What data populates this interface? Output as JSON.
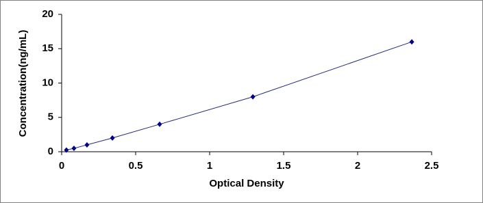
{
  "chart_data": {
    "type": "scatter-line",
    "x_label": "Optical Density",
    "y_label": "Concentration(ng/mL)",
    "x": [
      0.032,
      0.083,
      0.171,
      0.343,
      0.662,
      1.292,
      2.366
    ],
    "values": [
      0.25,
      0.5,
      1,
      2,
      4,
      8,
      16
    ],
    "color": "#00008b",
    "line_color": "#1f2a7a",
    "xlim": [
      0,
      2.5
    ],
    "xticks": [
      0,
      0.5,
      1,
      1.5,
      2,
      2.5
    ],
    "ylim": [
      0,
      20
    ],
    "yticks": [
      0,
      5,
      10,
      15,
      20
    ]
  }
}
